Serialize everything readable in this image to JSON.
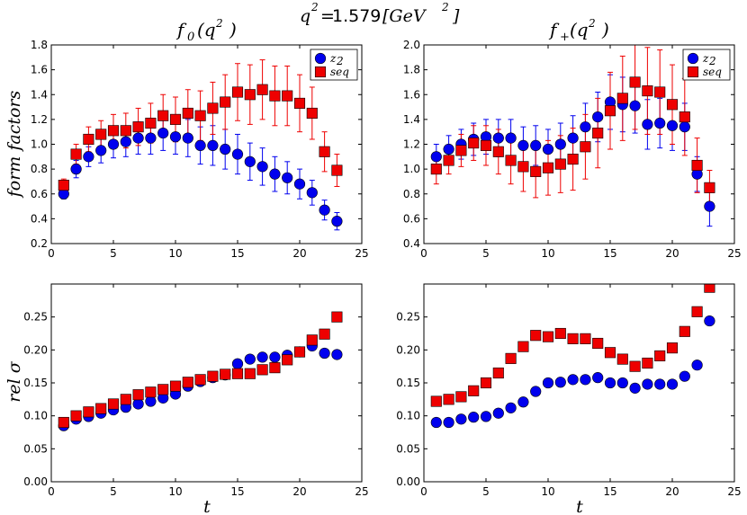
{
  "figure": {
    "suptitle_q": "q",
    "suptitle_exp": "2",
    "suptitle_eq": "=",
    "suptitle_value": "1.579",
    "suptitle_unit_open": "[GeV",
    "suptitle_unit_exp": "2",
    "suptitle_unit_close": "]",
    "shared_ylabel_top": "form  factors",
    "shared_ylabel_bottom": "rel  σ",
    "shared_xlabel": "t"
  },
  "colors": {
    "z2": "#0000ee",
    "seq": "#ee0000"
  },
  "chart_data": [
    {
      "id": "f0-form-factors",
      "type": "scatter",
      "title": "f0(q2)",
      "title_main": "f",
      "title_sub": "0",
      "title_arg": "(q",
      "title_arg_exp": "2",
      "title_arg_close": ")",
      "xlabel": "",
      "ylabel": "form  factors",
      "xlim": [
        0,
        25
      ],
      "ylim": [
        0.2,
        1.8
      ],
      "xticks": [
        0,
        5,
        10,
        15,
        20,
        25
      ],
      "yticks": [
        0.2,
        0.4,
        0.6,
        0.8,
        1.0,
        1.2,
        1.4,
        1.6,
        1.8
      ],
      "ytick_labels": [
        "0.2",
        "0.4",
        "0.6",
        "0.8",
        "1.0",
        "1.2",
        "1.4",
        "1.6",
        "1.8"
      ],
      "legend": {
        "position": "top-right",
        "entries": [
          "z2",
          "seq"
        ]
      },
      "series": [
        {
          "name": "z2",
          "label_main": "z",
          "label_sub": "2",
          "marker": "circle",
          "x": [
            1,
            2,
            3,
            4,
            5,
            6,
            7,
            8,
            9,
            10,
            11,
            12,
            13,
            14,
            15,
            16,
            17,
            18,
            19,
            20,
            21,
            22,
            23
          ],
          "y": [
            0.6,
            0.8,
            0.9,
            0.95,
            1.0,
            1.02,
            1.05,
            1.05,
            1.09,
            1.06,
            1.05,
            0.99,
            0.99,
            0.96,
            0.92,
            0.86,
            0.82,
            0.76,
            0.73,
            0.68,
            0.61,
            0.47,
            0.38
          ],
          "err": [
            0.04,
            0.07,
            0.08,
            0.1,
            0.11,
            0.12,
            0.13,
            0.13,
            0.14,
            0.14,
            0.15,
            0.15,
            0.16,
            0.16,
            0.16,
            0.15,
            0.15,
            0.14,
            0.13,
            0.12,
            0.1,
            0.08,
            0.07
          ]
        },
        {
          "name": "seq",
          "label_main": "seq",
          "label_sub": "",
          "marker": "square",
          "x": [
            1,
            2,
            3,
            4,
            5,
            6,
            7,
            8,
            9,
            10,
            11,
            12,
            13,
            14,
            15,
            16,
            17,
            18,
            19,
            20,
            21,
            22,
            23
          ],
          "y": [
            0.67,
            0.92,
            1.04,
            1.08,
            1.11,
            1.11,
            1.14,
            1.17,
            1.23,
            1.2,
            1.25,
            1.23,
            1.29,
            1.34,
            1.42,
            1.4,
            1.44,
            1.39,
            1.39,
            1.33,
            1.25,
            0.94,
            0.79
          ],
          "err": [
            0.05,
            0.08,
            0.1,
            0.11,
            0.13,
            0.14,
            0.15,
            0.16,
            0.17,
            0.18,
            0.19,
            0.2,
            0.21,
            0.22,
            0.23,
            0.24,
            0.24,
            0.24,
            0.24,
            0.23,
            0.21,
            0.16,
            0.13
          ]
        }
      ]
    },
    {
      "id": "fplus-form-factors",
      "type": "scatter",
      "title": "f+(q2)",
      "title_main": "f",
      "title_sub": "+",
      "title_arg": "(q",
      "title_arg_exp": "2",
      "title_arg_close": ")",
      "xlabel": "",
      "ylabel": "",
      "xlim": [
        0,
        25
      ],
      "ylim": [
        0.4,
        2.0
      ],
      "xticks": [
        0,
        5,
        10,
        15,
        20,
        25
      ],
      "yticks": [
        0.4,
        0.6,
        0.8,
        1.0,
        1.2,
        1.4,
        1.6,
        1.8,
        2.0
      ],
      "ytick_labels": [
        "0.4",
        "0.6",
        "0.8",
        "1.0",
        "1.2",
        "1.4",
        "1.6",
        "1.8",
        "2.0"
      ],
      "legend": {
        "position": "top-right",
        "entries": [
          "z2",
          "seq"
        ]
      },
      "series": [
        {
          "name": "z2",
          "label_main": "z",
          "label_sub": "2",
          "marker": "circle",
          "x": [
            1,
            2,
            3,
            4,
            5,
            6,
            7,
            8,
            9,
            10,
            11,
            12,
            13,
            14,
            15,
            16,
            17,
            18,
            19,
            20,
            21,
            22,
            23
          ],
          "y": [
            1.1,
            1.16,
            1.2,
            1.24,
            1.26,
            1.25,
            1.25,
            1.19,
            1.19,
            1.16,
            1.2,
            1.25,
            1.34,
            1.42,
            1.54,
            1.52,
            1.51,
            1.36,
            1.37,
            1.35,
            1.34,
            0.96,
            0.7
          ],
          "err": [
            0.1,
            0.11,
            0.12,
            0.13,
            0.14,
            0.15,
            0.15,
            0.15,
            0.16,
            0.16,
            0.17,
            0.18,
            0.19,
            0.2,
            0.22,
            0.22,
            0.22,
            0.2,
            0.2,
            0.2,
            0.19,
            0.14,
            0.16
          ]
        },
        {
          "name": "seq",
          "label_main": "seq",
          "label_sub": "",
          "marker": "square",
          "x": [
            1,
            2,
            3,
            4,
            5,
            6,
            7,
            8,
            9,
            10,
            11,
            12,
            13,
            14,
            15,
            16,
            17,
            18,
            19,
            20,
            21,
            22,
            23
          ],
          "y": [
            1.0,
            1.07,
            1.15,
            1.21,
            1.19,
            1.14,
            1.07,
            1.02,
            0.98,
            1.01,
            1.04,
            1.08,
            1.18,
            1.29,
            1.47,
            1.57,
            1.7,
            1.63,
            1.62,
            1.52,
            1.42,
            1.03,
            0.85
          ],
          "err": [
            0.12,
            0.11,
            0.13,
            0.14,
            0.16,
            0.18,
            0.19,
            0.2,
            0.21,
            0.22,
            0.23,
            0.25,
            0.26,
            0.28,
            0.31,
            0.34,
            0.38,
            0.35,
            0.34,
            0.32,
            0.31,
            0.22,
            0.14
          ]
        }
      ]
    },
    {
      "id": "f0-rel-sigma",
      "type": "scatter",
      "title": "",
      "xlabel": "t",
      "ylabel": "rel  σ",
      "xlim": [
        0,
        25
      ],
      "ylim": [
        0.0,
        0.3
      ],
      "xticks": [
        0,
        5,
        10,
        15,
        20,
        25
      ],
      "yticks": [
        0.0,
        0.05,
        0.1,
        0.15,
        0.2,
        0.25
      ],
      "ytick_labels": [
        "0.00",
        "0.05",
        "0.10",
        "0.15",
        "0.20",
        "0.25"
      ],
      "series": [
        {
          "name": "z2",
          "marker": "circle",
          "x": [
            1,
            2,
            3,
            4,
            5,
            6,
            7,
            8,
            9,
            10,
            11,
            12,
            13,
            14,
            15,
            16,
            17,
            18,
            19,
            20,
            21,
            22,
            23
          ],
          "y": [
            0.085,
            0.095,
            0.099,
            0.104,
            0.109,
            0.113,
            0.118,
            0.122,
            0.127,
            0.133,
            0.145,
            0.152,
            0.158,
            0.162,
            0.179,
            0.186,
            0.189,
            0.189,
            0.192,
            0.197,
            0.206,
            0.195,
            0.193
          ]
        },
        {
          "name": "seq",
          "marker": "square",
          "x": [
            1,
            2,
            3,
            4,
            5,
            6,
            7,
            8,
            9,
            10,
            11,
            12,
            13,
            14,
            15,
            16,
            17,
            18,
            19,
            20,
            21,
            22,
            23
          ],
          "y": [
            0.09,
            0.1,
            0.106,
            0.111,
            0.118,
            0.125,
            0.132,
            0.136,
            0.14,
            0.145,
            0.151,
            0.155,
            0.16,
            0.163,
            0.164,
            0.164,
            0.17,
            0.173,
            0.185,
            0.197,
            0.215,
            0.224,
            0.25
          ]
        }
      ]
    },
    {
      "id": "fplus-rel-sigma",
      "type": "scatter",
      "title": "",
      "xlabel": "t",
      "ylabel": "",
      "xlim": [
        0,
        25
      ],
      "ylim": [
        0.0,
        0.3
      ],
      "xticks": [
        0,
        5,
        10,
        15,
        20,
        25
      ],
      "yticks": [
        0.0,
        0.05,
        0.1,
        0.15,
        0.2,
        0.25
      ],
      "ytick_labels": [
        "0.00",
        "0.05",
        "0.10",
        "0.15",
        "0.20",
        "0.25"
      ],
      "series": [
        {
          "name": "z2",
          "marker": "circle",
          "x": [
            1,
            2,
            3,
            4,
            5,
            6,
            7,
            8,
            9,
            10,
            11,
            12,
            13,
            14,
            15,
            16,
            17,
            18,
            19,
            20,
            21,
            22,
            23
          ],
          "y": [
            0.09,
            0.09,
            0.095,
            0.098,
            0.099,
            0.104,
            0.112,
            0.121,
            0.137,
            0.15,
            0.151,
            0.155,
            0.155,
            0.158,
            0.15,
            0.15,
            0.142,
            0.148,
            0.148,
            0.148,
            0.16,
            0.177,
            0.244
          ]
        },
        {
          "name": "seq",
          "marker": "square",
          "x": [
            1,
            2,
            3,
            4,
            5,
            6,
            7,
            8,
            9,
            10,
            11,
            12,
            13,
            14,
            15,
            16,
            17,
            18,
            19,
            20,
            21,
            22,
            23
          ],
          "y": [
            0.122,
            0.125,
            0.129,
            0.138,
            0.15,
            0.165,
            0.187,
            0.205,
            0.222,
            0.22,
            0.225,
            0.217,
            0.217,
            0.21,
            0.196,
            0.186,
            0.175,
            0.18,
            0.191,
            0.203,
            0.228,
            0.258,
            0.295
          ]
        }
      ]
    }
  ]
}
